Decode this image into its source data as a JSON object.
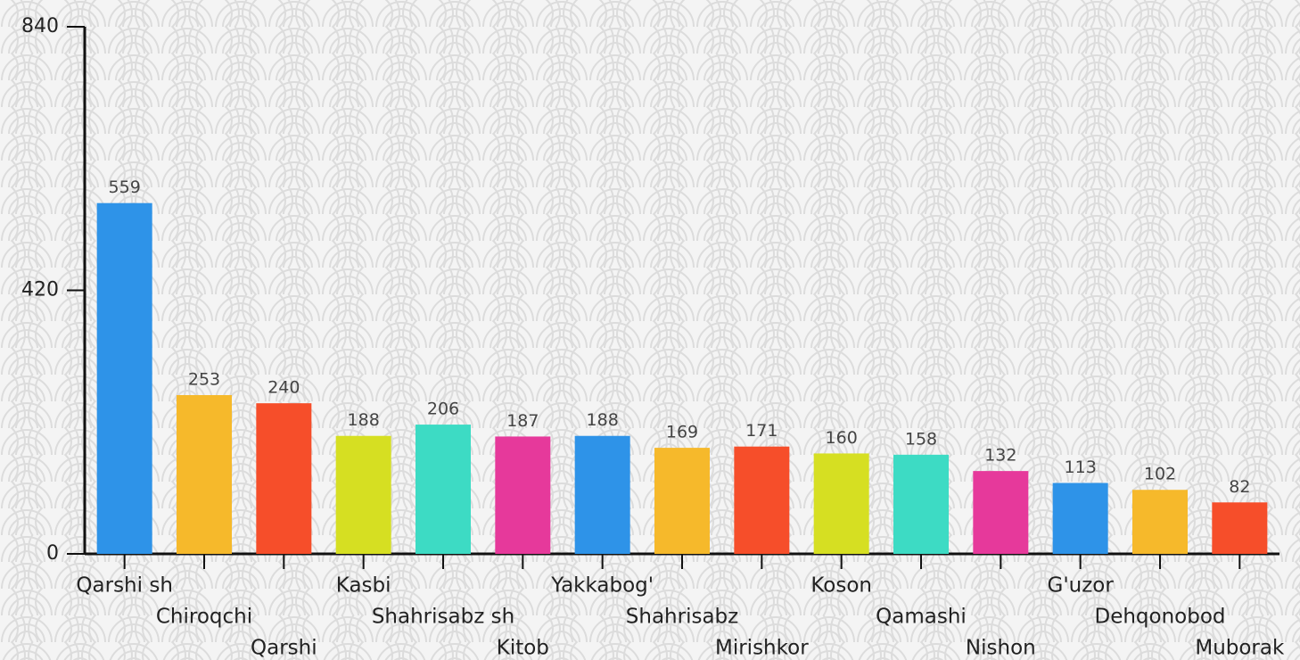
{
  "chart_data": {
    "type": "bar",
    "categories": [
      "Qarshi sh",
      "Chiroqchi",
      "Qarshi",
      "Kasbi",
      "Shahrisabz sh",
      "Kitob",
      "Yakkabog'",
      "Shahrisabz",
      "Mirishkor",
      "Koson",
      "Qamashi",
      "Nishon",
      "G'uzor",
      "Dehqonobod",
      "Muborak"
    ],
    "values": [
      559,
      253,
      240,
      188,
      206,
      187,
      188,
      169,
      171,
      160,
      158,
      132,
      113,
      102,
      82
    ],
    "colors": [
      "#2e93e8",
      "#f6b92b",
      "#f64e2a",
      "#d6df22",
      "#3ddbc4",
      "#e6399b",
      "#2e93e8",
      "#f6b92b",
      "#f64e2a",
      "#d6df22",
      "#3ddbc4",
      "#e6399b",
      "#2e93e8",
      "#f6b92b",
      "#f64e2a"
    ],
    "ylim": [
      0,
      840
    ],
    "yticks": [
      0,
      420,
      840
    ],
    "data_labels": true
  }
}
